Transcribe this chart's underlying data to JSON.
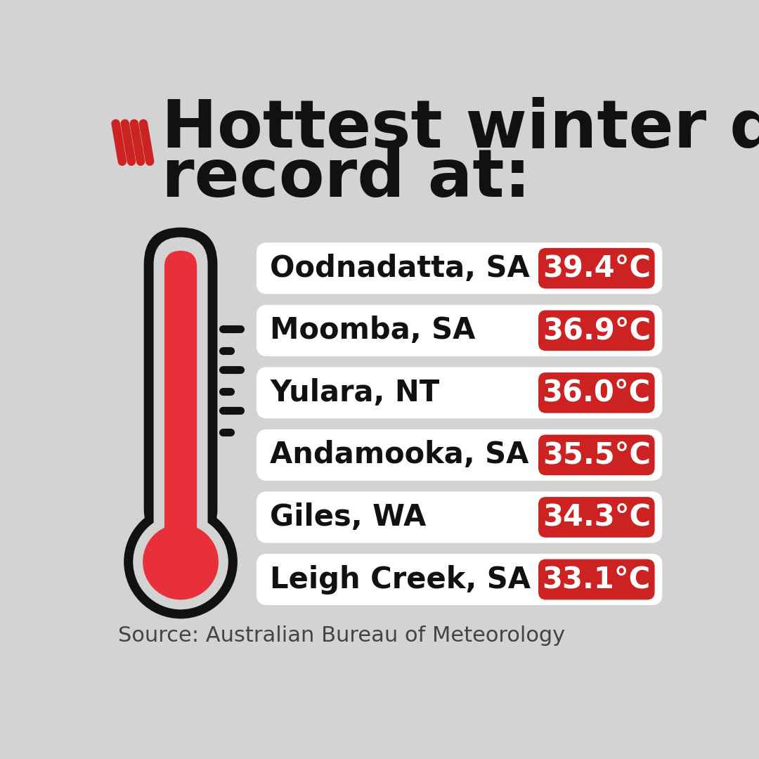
{
  "title_line1": "Hottest winter day on",
  "title_line2": "record at:",
  "bg_color": "#d3d3d3",
  "card_bg": "#ffffff",
  "red_color": "#cc2222",
  "title_color": "#111111",
  "source_text": "Source: Australian Bureau of Meteorology",
  "locations": [
    "Oodnadatta, SA",
    "Moomba, SA",
    "Yulara, NT",
    "Andamooka, SA",
    "Giles, WA",
    "Leigh Creek, SA"
  ],
  "temperatures": [
    "39.4°C",
    "36.9°C",
    "36.0°C",
    "35.5°C",
    "34.3°C",
    "33.1°C"
  ],
  "thermometer_red": "#e8303a",
  "tick_color": "#111111",
  "logo_red": "#cc2222"
}
